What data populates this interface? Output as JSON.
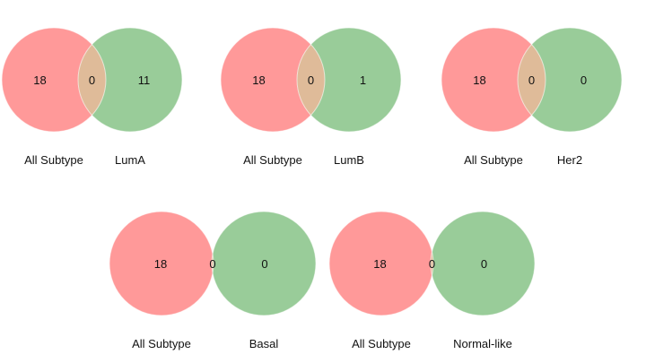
{
  "colors": {
    "left_set": "#ff9999",
    "right_set": "#99cc99",
    "overlap": "#dfbb99"
  },
  "diagrams": [
    {
      "left_label": "All Subtype",
      "right_label": "LumA",
      "left_only": "18",
      "intersection": "0",
      "right_only": "11"
    },
    {
      "left_label": "All Subtype",
      "right_label": "LumB",
      "left_only": "18",
      "intersection": "0",
      "right_only": "1"
    },
    {
      "left_label": "All Subtype",
      "right_label": "Her2",
      "left_only": "18",
      "intersection": "0",
      "right_only": "0"
    },
    {
      "left_label": "All Subtype",
      "right_label": "Basal",
      "left_only": "18",
      "intersection": "0",
      "right_only": "0"
    },
    {
      "left_label": "All Subtype",
      "right_label": "Normal-like",
      "left_only": "18",
      "intersection": "0",
      "right_only": "0"
    }
  ]
}
